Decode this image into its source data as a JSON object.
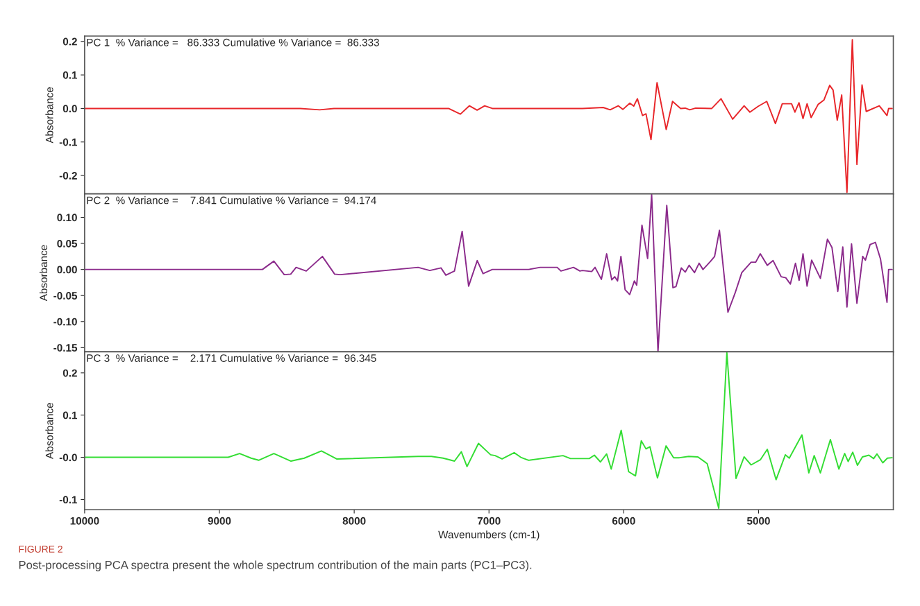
{
  "chart_data": [
    {
      "type": "line",
      "ylabel": "Absorbance",
      "annotations": [
        "PC 1  % Variance =   86.333 Cumulative % Variance =  86.333"
      ],
      "xlim": [
        10000,
        4000
      ],
      "ylim": [
        -0.255,
        0.216
      ],
      "yticks": [
        {
          "value": 0.2,
          "label": "0.2"
        },
        {
          "value": 0.1,
          "label": "0.1"
        },
        {
          "value": 0,
          "label": "0.0"
        },
        {
          "value": -0.1,
          "label": "-0.1"
        },
        {
          "value": -0.2,
          "label": "-0.2"
        }
      ],
      "tick_labels": "y",
      "grid": false,
      "series": [
        {
          "color": "#e8262a",
          "x": [
            10000,
            8400,
            8256,
            8150,
            7300,
            7212,
            7145,
            7088,
            7032,
            6975,
            6307,
            6153,
            6101,
            6041,
            6007,
            5955,
            5926,
            5899,
            5861,
            5835,
            5798,
            5753,
            5685,
            5638,
            5578,
            5544,
            5510,
            5467,
            5347,
            5278,
            5192,
            5107,
            5064,
            5004,
            4939,
            4875,
            4824,
            4755,
            4730,
            4700,
            4670,
            4640,
            4610,
            4558,
            4515,
            4472,
            4447,
            4416,
            4383,
            4344,
            4304,
            4270,
            4232,
            4201,
            4104,
            4047,
            4035,
            4009
          ],
          "values": [
            0,
            0,
            -0.004,
            0,
            0,
            -0.017,
            0.008,
            -0.005,
            0.008,
            0,
            0,
            0.003,
            -0.004,
            0.008,
            -0.003,
            0.016,
            0.007,
            0.029,
            -0.021,
            -0.016,
            -0.093,
            0.077,
            -0.063,
            0.021,
            0,
            0.001,
            -0.004,
            0.001,
            0,
            0.029,
            -0.032,
            0.008,
            -0.011,
            0.006,
            0.021,
            -0.045,
            0.014,
            0.014,
            -0.011,
            0.017,
            -0.03,
            0.014,
            -0.027,
            0.012,
            0.025,
            0.069,
            0.055,
            -0.035,
            0.04,
            -0.25,
            0.205,
            -0.167,
            0.07,
            -0.009,
            0.008,
            -0.021,
            0,
            0
          ]
        }
      ]
    },
    {
      "type": "line",
      "ylabel": "Absorbance",
      "annotations": [
        "PC 2  % Variance =    7.841 Cumulative % Variance =  94.174"
      ],
      "xlim": [
        10000,
        4000
      ],
      "ylim": [
        -0.158,
        0.145
      ],
      "yticks": [
        {
          "value": 0.1,
          "label": "0.10"
        },
        {
          "value": 0.05,
          "label": "0.05"
        },
        {
          "value": 0,
          "label": "0.00"
        },
        {
          "value": -0.05,
          "label": "-0.05"
        },
        {
          "value": -0.1,
          "label": "-0.10"
        },
        {
          "value": -0.15,
          "label": "-0.15"
        }
      ],
      "tick_labels": "y",
      "grid": false,
      "series": [
        {
          "color": "#8b2a8b",
          "x": [
            10000,
            8681,
            8596,
            8519,
            8471,
            8431,
            8356,
            8236,
            8145,
            8104,
            7526,
            7439,
            7356,
            7320,
            7256,
            7199,
            7151,
            7087,
            7044,
            6975,
            6706,
            6621,
            6494,
            6466,
            6373,
            6325,
            6307,
            6238,
            6213,
            6166,
            6127,
            6089,
            6067,
            6046,
            6021,
            5990,
            5956,
            5921,
            5904,
            5865,
            5823,
            5793,
            5746,
            5681,
            5635,
            5613,
            5573,
            5544,
            5515,
            5475,
            5441,
            5412,
            5355,
            5326,
            5290,
            5227,
            5175,
            5124,
            5055,
            5021,
            4987,
            4935,
            4892,
            4832,
            4798,
            4764,
            4726,
            4699,
            4670,
            4640,
            4606,
            4541,
            4489,
            4455,
            4412,
            4375,
            4344,
            4310,
            4270,
            4227,
            4207,
            4172,
            4133,
            4095,
            4047,
            4035,
            4009
          ],
          "values": [
            0,
            0,
            0.016,
            -0.01,
            -0.009,
            0.004,
            -0.003,
            0.025,
            -0.009,
            -0.01,
            0.004,
            -0.002,
            0.003,
            -0.011,
            -0.003,
            0.073,
            -0.032,
            0.017,
            -0.008,
            0,
            0,
            0.004,
            0.004,
            -0.003,
            0.004,
            -0.003,
            -0.002,
            -0.004,
            0.004,
            -0.019,
            0.03,
            -0.02,
            -0.014,
            -0.022,
            0.025,
            -0.039,
            -0.048,
            -0.022,
            -0.03,
            0.085,
            0.021,
            0.144,
            -0.157,
            0.123,
            -0.035,
            -0.033,
            0.003,
            -0.005,
            0.008,
            -0.006,
            0.012,
            0,
            0.016,
            0.025,
            0.075,
            -0.082,
            -0.046,
            -0.006,
            0.014,
            0.014,
            0.03,
            0.008,
            0.017,
            -0.014,
            -0.016,
            -0.028,
            0.012,
            -0.021,
            0.03,
            -0.032,
            0.018,
            -0.017,
            0.058,
            0.042,
            -0.042,
            0.043,
            -0.072,
            0.049,
            -0.065,
            0.025,
            0.018,
            0.048,
            0.052,
            0.02,
            -0.063,
            0,
            0
          ]
        }
      ]
    },
    {
      "type": "line",
      "ylabel": "Absorbance",
      "xlabel": "Wavenumbers (cm-1)",
      "annotations": [
        "PC 3  % Variance =    2.171 Cumulative % Variance =  96.345",
        "FIGURE 2",
        "Post-processing PCA spectra present the whole spectrum contribution of the main parts (PC1–PC3)."
      ],
      "xlim": [
        10000,
        4000
      ],
      "xticks": [
        10000,
        9000,
        8000,
        7000,
        6000,
        5000
      ],
      "ylim": [
        -0.124,
        0.25
      ],
      "yticks": [
        {
          "value": 0.2,
          "label": "0.2"
        },
        {
          "value": 0.1,
          "label": "0.1"
        },
        {
          "value": 0,
          "label": "-0.0"
        },
        {
          "value": -0.1,
          "label": "-0.1"
        }
      ],
      "grid": false,
      "series": [
        {
          "color": "#33dd33",
          "x": [
            10000,
            8935,
            8850,
            8765,
            8709,
            8596,
            8469,
            8370,
            8243,
            8130,
            7526,
            7427,
            7340,
            7256,
            7205,
            7163,
            7078,
            6988,
            6954,
            6903,
            6813,
            6764,
            6706,
            6451,
            6395,
            6307,
            6256,
            6218,
            6173,
            6127,
            6093,
            6019,
            5964,
            5913,
            5870,
            5835,
            5806,
            5750,
            5686,
            5630,
            5587,
            5518,
            5450,
            5381,
            5295,
            5235,
            5167,
            5107,
            5055,
            4987,
            4935,
            4870,
            4801,
            4772,
            4678,
            4627,
            4587,
            4541,
            4467,
            4404,
            4361,
            4335,
            4301,
            4266,
            4229,
            4181,
            4146,
            4121,
            4078,
            4044,
            4009
          ],
          "values": [
            0,
            0,
            0.009,
            -0.002,
            -0.007,
            0.009,
            -0.009,
            -0.002,
            0.015,
            -0.004,
            0.002,
            0.002,
            -0.002,
            -0.009,
            0.013,
            -0.022,
            0.033,
            0.006,
            0.004,
            -0.004,
            0.011,
            0,
            -0.007,
            0.004,
            -0.003,
            -0.003,
            -0.003,
            0.005,
            -0.011,
            0.008,
            -0.028,
            0.064,
            -0.034,
            -0.044,
            0.039,
            0.02,
            0.025,
            -0.049,
            0.027,
            -0.001,
            -0.001,
            0.002,
            0.001,
            -0.015,
            -0.121,
            0.248,
            -0.05,
            0.001,
            -0.018,
            -0.006,
            0.019,
            -0.053,
            0.006,
            -0.002,
            0.053,
            -0.037,
            0.004,
            -0.037,
            0.042,
            -0.028,
            0.009,
            -0.01,
            0.012,
            -0.019,
            0.001,
            0.005,
            -0.003,
            0.008,
            -0.013,
            -0.002,
            -0.001
          ]
        }
      ]
    }
  ]
}
